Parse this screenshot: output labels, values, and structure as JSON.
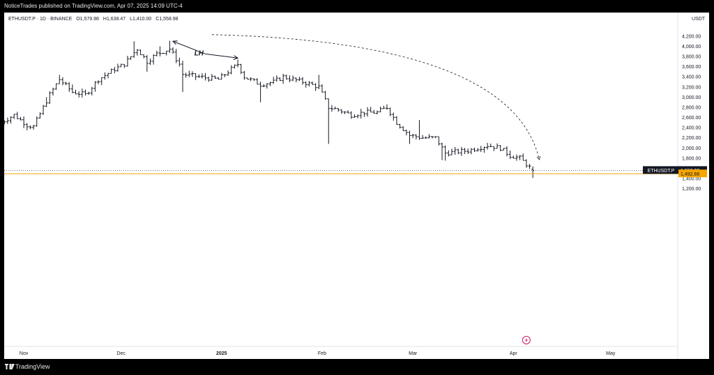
{
  "header": {
    "publisher": "NoticeTrades published on TradingView.com, Apr 07, 2025 14:09 UTC-4"
  },
  "legend": {
    "symbol": "ETHUSDT.P · 1D · BINANCE",
    "open": "O1,579.98",
    "high": "H1,638.47",
    "low": "L1,410.00",
    "close": "C1,558.98"
  },
  "footer": {
    "brand": "TradingView"
  },
  "colors": {
    "price_line": "#f7a600",
    "axis_text": "#131722",
    "bar": "#131722"
  },
  "chart_data": {
    "type": "ohlc",
    "symbol": "ETHUSDT.P",
    "interval": "1D",
    "exchange": "BINANCE",
    "currency_label": "USDT",
    "ylim": [
      1100,
      4400
    ],
    "y_ticks": [
      "4,200.00",
      "4,000.00",
      "3,800.00",
      "3,600.00",
      "3,400.00",
      "3,200.00",
      "3,000.00",
      "2,800.00",
      "2,600.00",
      "2,400.00",
      "2,200.00",
      "2,000.00",
      "1,800.00",
      "1,600.00",
      "1,400.00",
      "1,200.00"
    ],
    "x_ticks": [
      {
        "label": "Nov",
        "bold": false
      },
      {
        "label": "Dec",
        "bold": false
      },
      {
        "label": "2025",
        "bold": true
      },
      {
        "label": "Feb",
        "bold": false
      },
      {
        "label": "Mar",
        "bold": false
      },
      {
        "label": "Apr",
        "bold": false
      },
      {
        "label": "May",
        "bold": false
      }
    ],
    "anchors": [
      [
        "2024-10-25",
        2500
      ],
      [
        "2024-10-29",
        2650
      ],
      [
        "2024-11-02",
        2450
      ],
      [
        "2024-11-04",
        2420
      ],
      [
        "2024-11-09",
        3050
      ],
      [
        "2024-11-12",
        3350
      ],
      [
        "2024-11-16",
        3100
      ],
      [
        "2024-11-20",
        3050
      ],
      [
        "2024-11-24",
        3350
      ],
      [
        "2024-11-29",
        3550
      ],
      [
        "2024-12-02",
        3650
      ],
      [
        "2024-12-06",
        3950
      ],
      [
        "2024-12-09",
        3700
      ],
      [
        "2024-12-12",
        3850
      ],
      [
        "2024-12-16",
        3950
      ],
      [
        "2024-12-19",
        3650
      ],
      [
        "2024-12-20",
        3450
      ],
      [
        "2024-12-25",
        3400
      ],
      [
        "2024-12-31",
        3350
      ],
      [
        "2025-01-06",
        3650
      ],
      [
        "2025-01-08",
        3400
      ],
      [
        "2025-01-13",
        3250
      ],
      [
        "2025-01-17",
        3300
      ],
      [
        "2025-01-20",
        3400
      ],
      [
        "2025-01-26",
        3300
      ],
      [
        "2025-01-31",
        3200
      ],
      [
        "2025-02-03",
        2800
      ],
      [
        "2025-02-06",
        2750
      ],
      [
        "2025-02-10",
        2650
      ],
      [
        "2025-02-14",
        2700
      ],
      [
        "2025-02-18",
        2700
      ],
      [
        "2025-02-21",
        2800
      ],
      [
        "2025-02-24",
        2500
      ],
      [
        "2025-02-28",
        2250
      ],
      [
        "2025-03-04",
        2200
      ],
      [
        "2025-03-08",
        2200
      ],
      [
        "2025-03-11",
        1900
      ],
      [
        "2025-03-18",
        1950
      ],
      [
        "2025-03-24",
        2050
      ],
      [
        "2025-03-28",
        2000
      ],
      [
        "2025-03-31",
        1850
      ],
      [
        "2025-04-03",
        1800
      ],
      [
        "2025-04-06",
        1620
      ],
      [
        "2025-04-07",
        1559
      ]
    ],
    "wicks": [
      {
        "date": "2024-11-04",
        "low": 2360
      },
      {
        "date": "2024-11-08",
        "high": 3000
      },
      {
        "date": "2024-11-12",
        "high": 3440
      },
      {
        "date": "2024-11-16",
        "high": 3250
      },
      {
        "date": "2024-12-05",
        "high": 4100
      },
      {
        "date": "2024-12-09",
        "low": 3500
      },
      {
        "date": "2024-12-13",
        "high": 4000
      },
      {
        "date": "2024-12-16",
        "high": 4110
      },
      {
        "date": "2024-12-20",
        "low": 3100
      },
      {
        "date": "2025-01-06",
        "high": 3740
      },
      {
        "date": "2025-01-13",
        "low": 2900
      },
      {
        "date": "2025-01-31",
        "high": 3440
      },
      {
        "date": "2025-02-03",
        "low": 2080
      },
      {
        "date": "2025-02-21",
        "high": 2860
      },
      {
        "date": "2025-02-28",
        "low": 2080
      },
      {
        "date": "2025-03-03",
        "high": 2550
      },
      {
        "date": "2025-03-10",
        "low": 1760
      },
      {
        "date": "2025-03-11",
        "low": 1750
      },
      {
        "date": "2025-03-24",
        "high": 2100
      },
      {
        "date": "2025-03-31",
        "high": 1950
      },
      {
        "date": "2025-04-07",
        "high": 1638,
        "low": 1410
      }
    ],
    "annotations": [
      {
        "type": "text",
        "text": "LH",
        "date": "2024-12-25",
        "price": 3820
      },
      {
        "type": "arrow",
        "from": [
          "2024-12-27",
          3850
        ],
        "to": [
          "2024-12-17",
          4100
        ]
      },
      {
        "type": "arrow",
        "from": [
          "2024-12-27",
          3850
        ],
        "to": [
          "2025-01-06",
          3770
        ]
      },
      {
        "type": "dashed-arc",
        "from": [
          "2024-12-29",
          4230
        ],
        "to": [
          "2025-04-09",
          1770
        ]
      }
    ],
    "price_labels": [
      {
        "text": "ETHUSDT.P",
        "value": "1,558.98",
        "price": 1558.98,
        "style": "dark"
      },
      {
        "text": "",
        "value": "1,492.66",
        "price": 1492.66,
        "style": "orange"
      }
    ],
    "last_price": 1558.98,
    "horizontal_line": 1492.66,
    "grid": false
  }
}
